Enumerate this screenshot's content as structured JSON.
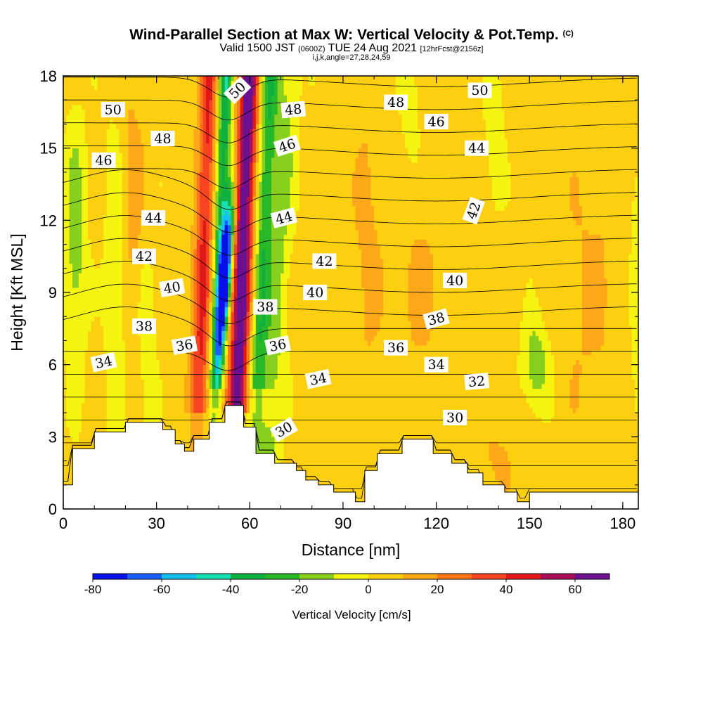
{
  "titles": {
    "main": "Wind-Parallel Section at Max W: Vertical Velocity & Pot.Temp.",
    "main_suffix": "(C)",
    "valid_prefix": "Valid 1500 JST",
    "valid_z": "(0600Z)",
    "valid_date": "TUE 24 Aug 2021",
    "fcst": "[12hrFcst@2156z]",
    "indices": "i,j,k,angle=27,28,24,59"
  },
  "chart_data": {
    "type": "heatmap",
    "title": "Wind-Parallel Section at Max W: Vertical Velocity & Pot.Temp.",
    "xlabel": "Distance [nm]",
    "ylabel": "Height [Kft MSL]",
    "xlim": [
      0,
      185
    ],
    "ylim": [
      0,
      18
    ],
    "x_ticks": [
      0,
      30,
      60,
      90,
      120,
      150,
      180
    ],
    "y_ticks": [
      0,
      3,
      6,
      9,
      12,
      15,
      18
    ],
    "x_tick_labels": [
      "0",
      "30",
      "60",
      "90",
      "120",
      "150",
      "180"
    ],
    "y_tick_labels": [
      "0",
      "3",
      "6",
      "9",
      "12",
      "15",
      "18"
    ],
    "colorbar": {
      "title": "Vertical Velocity [cm/s]",
      "boundaries": [
        -80,
        -70,
        -60,
        -50,
        -40,
        -30,
        -20,
        -10,
        0,
        10,
        20,
        30,
        40,
        50,
        60,
        70
      ],
      "tick_values": [
        -80,
        -60,
        -40,
        -20,
        0,
        20,
        40,
        60
      ],
      "tick_labels": [
        "-80",
        "-60",
        "-40",
        "-20",
        "0",
        "20",
        "40",
        "60"
      ],
      "colors": [
        "#0a10e8",
        "#1a60ff",
        "#18c0f0",
        "#18e0b0",
        "#10b040",
        "#28b828",
        "#88d020",
        "#f4f410",
        "#fcd010",
        "#fca818",
        "#fc7818",
        "#f84420",
        "#e01818",
        "#a81058",
        "#6a1090"
      ]
    },
    "updraft_structure": [
      {
        "name": "updraft-core",
        "x": 57,
        "y_bottom": 4.3,
        "y_top": 18,
        "max_cm_s": 60
      },
      {
        "name": "downdraft-core",
        "x": 52,
        "y_bottom": 7,
        "y_top": 12.8,
        "min_cm_s": -80
      },
      {
        "name": "secondary-updraft",
        "x": 44,
        "y_bottom": 4.4,
        "y_top": 18,
        "max_cm_s": 40
      }
    ],
    "terrain_profile": {
      "x": [
        0,
        3,
        3,
        10,
        10,
        20,
        20,
        32,
        32,
        36,
        36,
        39,
        39,
        42,
        42,
        47,
        47,
        52,
        52,
        58,
        58,
        62,
        62,
        68,
        68,
        75,
        75,
        78,
        78,
        82,
        82,
        87,
        87,
        94,
        94,
        97,
        97,
        101,
        101,
        109,
        109,
        119,
        119,
        125,
        125,
        130,
        130,
        135,
        135,
        142,
        142,
        146,
        146,
        150,
        150,
        155,
        155,
        160,
        160,
        185
      ],
      "y": [
        1,
        1,
        2.5,
        2.5,
        3.2,
        3.2,
        3.6,
        3.6,
        3.3,
        3.3,
        2.7,
        2.7,
        2.4,
        2.4,
        2.9,
        2.9,
        3.6,
        3.6,
        4.3,
        4.3,
        3.4,
        3.4,
        2.3,
        2.3,
        1.9,
        1.9,
        1.6,
        1.6,
        1.2,
        1.2,
        1.0,
        1.0,
        0.7,
        0.7,
        0.3,
        0.3,
        1.6,
        1.6,
        2.3,
        2.3,
        2.9,
        2.9,
        2.3,
        2.3,
        1.9,
        1.9,
        1.5,
        1.5,
        1.0,
        1.0,
        0.7,
        0.7,
        0.3,
        0.3,
        0.7,
        0.7,
        0.7,
        0.7,
        0.7,
        0.7
      ]
    },
    "theta_contour_labels": [
      {
        "text": "50",
        "x": 16,
        "y": 16.6,
        "angle": 0
      },
      {
        "text": "50",
        "x": 56,
        "y": 17.4,
        "angle": -45
      },
      {
        "text": "50",
        "x": 134,
        "y": 17.4,
        "angle": 0
      },
      {
        "text": "48",
        "x": 32,
        "y": 15.4,
        "angle": 0
      },
      {
        "text": "48",
        "x": 74,
        "y": 16.6,
        "angle": -5
      },
      {
        "text": "48",
        "x": 107,
        "y": 16.9,
        "angle": 0
      },
      {
        "text": "46",
        "x": 13,
        "y": 14.5,
        "angle": 0
      },
      {
        "text": "46",
        "x": 72,
        "y": 15.1,
        "angle": -18
      },
      {
        "text": "46",
        "x": 120,
        "y": 16.1,
        "angle": 0
      },
      {
        "text": "44",
        "x": 29,
        "y": 12.1,
        "angle": 0
      },
      {
        "text": "44",
        "x": 71,
        "y": 12.1,
        "angle": -15
      },
      {
        "text": "44",
        "x": 133,
        "y": 15.0,
        "angle": 0
      },
      {
        "text": "42",
        "x": 26,
        "y": 10.5,
        "angle": 0
      },
      {
        "text": "42",
        "x": 84,
        "y": 10.3,
        "angle": 0
      },
      {
        "text": "42",
        "x": 132,
        "y": 12.4,
        "angle": -70
      },
      {
        "text": "40",
        "x": 35,
        "y": 9.2,
        "angle": -10
      },
      {
        "text": "40",
        "x": 81,
        "y": 9.0,
        "angle": 0
      },
      {
        "text": "40",
        "x": 126,
        "y": 9.5,
        "angle": 0
      },
      {
        "text": "38",
        "x": 26,
        "y": 7.6,
        "angle": 0
      },
      {
        "text": "38",
        "x": 65,
        "y": 8.4,
        "angle": 0
      },
      {
        "text": "38",
        "x": 120,
        "y": 7.9,
        "angle": -15
      },
      {
        "text": "36",
        "x": 39,
        "y": 6.8,
        "angle": -10
      },
      {
        "text": "36",
        "x": 69,
        "y": 6.8,
        "angle": -12
      },
      {
        "text": "36",
        "x": 107,
        "y": 6.7,
        "angle": 0
      },
      {
        "text": "34",
        "x": 13,
        "y": 6.1,
        "angle": -12
      },
      {
        "text": "34",
        "x": 82,
        "y": 5.4,
        "angle": -12
      },
      {
        "text": "34",
        "x": 120,
        "y": 6.0,
        "angle": 0
      },
      {
        "text": "32",
        "x": 133,
        "y": 5.3,
        "angle": -5
      },
      {
        "text": "30",
        "x": 71,
        "y": 3.3,
        "angle": -30
      },
      {
        "text": "30",
        "x": 126,
        "y": 3.8,
        "angle": 0
      }
    ]
  }
}
